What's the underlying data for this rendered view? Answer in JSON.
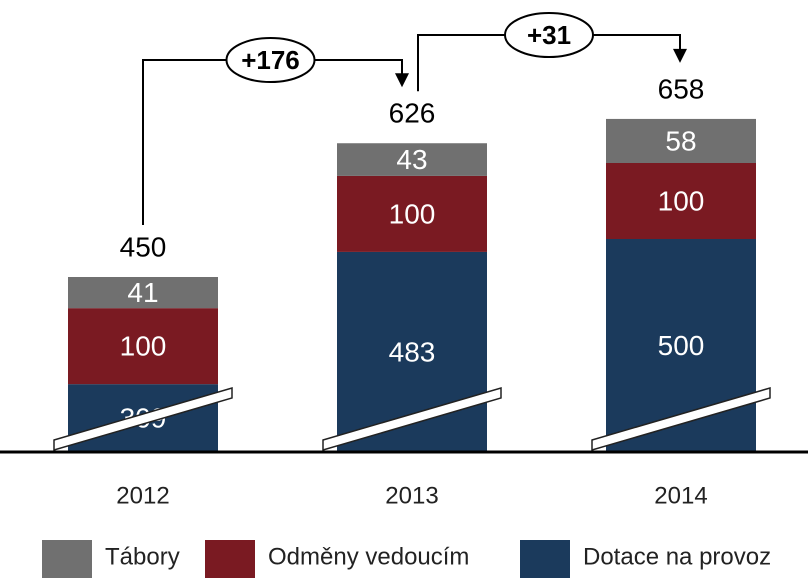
{
  "chart_data": {
    "type": "stacked_bar",
    "categories": [
      "2012",
      "2013",
      "2014"
    ],
    "series": [
      {
        "name": "Dotace na provoz",
        "color": "#1b3a5c",
        "values": [
          309,
          483,
          500
        ]
      },
      {
        "name": "Odměny vedoucím",
        "color": "#7a1a22",
        "values": [
          100,
          100,
          100
        ]
      },
      {
        "name": "Tábory",
        "color": "#707070",
        "values": [
          41,
          43,
          58
        ]
      }
    ],
    "totals": [
      450,
      626,
      658
    ],
    "annotations": [
      "+176",
      "+31"
    ]
  }
}
